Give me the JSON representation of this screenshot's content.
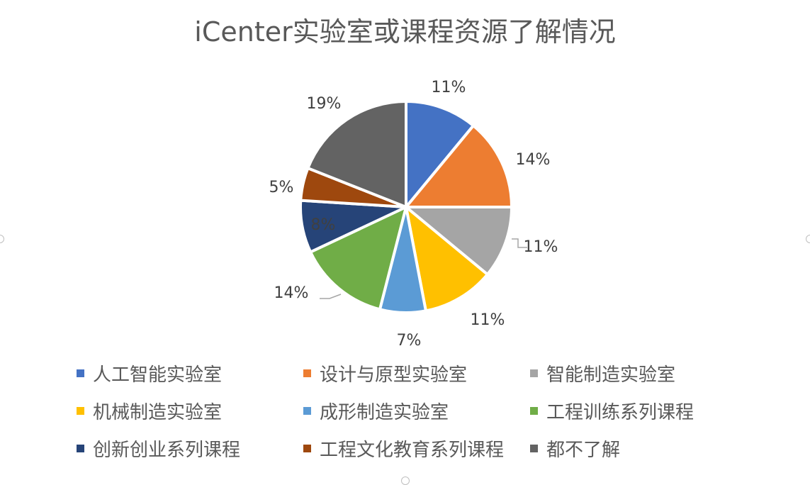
{
  "chart_data": {
    "type": "pie",
    "title": "iCenter实验室或课程资源了解情况",
    "series": [
      {
        "label": "人工智能实验室",
        "percent": 11,
        "display": "11%",
        "color": "#4472C4"
      },
      {
        "label": "设计与原型实验室",
        "percent": 14,
        "display": "14%",
        "color": "#ED7D31"
      },
      {
        "label": "智能制造实验室",
        "percent": 11,
        "display": "11%",
        "color": "#A5A5A5"
      },
      {
        "label": "机械制造实验室",
        "percent": 11,
        "display": "11%",
        "color": "#FFC000"
      },
      {
        "label": "成形制造实验室",
        "percent": 7,
        "display": "7%",
        "color": "#5B9BD5"
      },
      {
        "label": "工程训练系列课程",
        "percent": 14,
        "display": "14%",
        "color": "#70AD47"
      },
      {
        "label": "创新创业系列课程",
        "percent": 8,
        "display": "8%",
        "color": "#264478"
      },
      {
        "label": "工程文化教育系列课程",
        "percent": 5,
        "display": "5%",
        "color": "#9E480E"
      },
      {
        "label": "都不了解",
        "percent": 19,
        "display": "19%",
        "color": "#636363"
      }
    ],
    "legend_position": "bottom"
  }
}
